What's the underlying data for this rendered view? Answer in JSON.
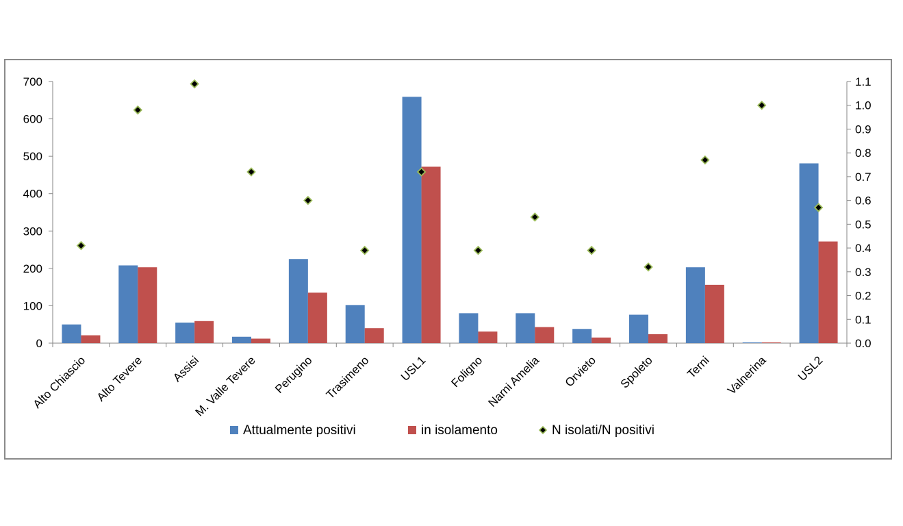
{
  "chart_data": {
    "type": "bar",
    "categories": [
      "Alto Chiascio",
      "Alto Tevere",
      "Assisi",
      "M. Valle Tevere",
      "Perugino",
      "Trasimeno",
      "USL1",
      "Foligno",
      "Narni Amelia",
      "Orvieto",
      "Spoleto",
      "Terni",
      "Valnerina",
      "USL2"
    ],
    "series": [
      {
        "name": "Attualmente positivi",
        "axis": "left",
        "kind": "bar",
        "color": "#4F81BD",
        "values": [
          50,
          208,
          55,
          17,
          225,
          102,
          659,
          80,
          80,
          38,
          76,
          203,
          2,
          481
        ]
      },
      {
        "name": "in isolamento",
        "axis": "left",
        "kind": "bar",
        "color": "#C0504D",
        "values": [
          21,
          203,
          59,
          12,
          135,
          40,
          472,
          31,
          43,
          15,
          24,
          156,
          2,
          272
        ]
      },
      {
        "name": "N isolati/N positivi",
        "axis": "right",
        "kind": "scatter",
        "color": "#9BBB59",
        "marker_edge": "#000000",
        "values": [
          0.41,
          0.98,
          1.09,
          0.72,
          0.6,
          0.39,
          0.72,
          0.39,
          0.53,
          0.39,
          0.32,
          0.77,
          1.0,
          0.57
        ]
      }
    ],
    "y_left": {
      "min": 0,
      "max": 700,
      "ticks": [
        "0",
        "100",
        "200",
        "300",
        "400",
        "500",
        "600",
        "700"
      ]
    },
    "y_right": {
      "min": 0,
      "max": 1.1,
      "ticks": [
        "0.0",
        "0.1",
        "0.2",
        "0.3",
        "0.4",
        "0.5",
        "0.6",
        "0.7",
        "0.8",
        "0.9",
        "1.0",
        "1.1"
      ]
    },
    "grid": false,
    "legend_position": "bottom",
    "title": "",
    "xlabel": "",
    "ylabel": ""
  }
}
